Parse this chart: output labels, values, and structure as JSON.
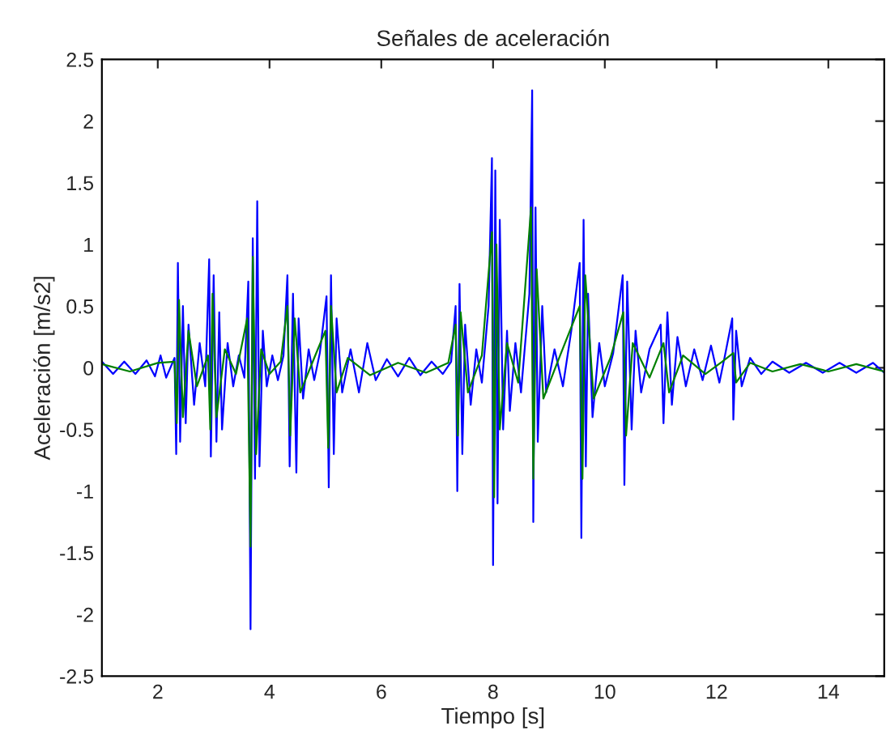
{
  "chart_data": {
    "type": "line",
    "title": "Señales de aceleración",
    "xlabel": "Tiempo [s]",
    "ylabel": "Aceleración [m/s2]",
    "xlim": [
      1,
      15
    ],
    "ylim": [
      -2.5,
      2.5
    ],
    "xticks": [
      2,
      4,
      6,
      8,
      10,
      12,
      14
    ],
    "yticks": [
      -2.5,
      -2,
      -1.5,
      -1,
      -0.5,
      0,
      0.5,
      1,
      1.5,
      2,
      2.5
    ],
    "grid": false,
    "line_style": "solid",
    "series": [
      {
        "color": "#0000ff",
        "x": [
          1.0,
          1.2,
          1.4,
          1.6,
          1.8,
          1.95,
          2.05,
          2.15,
          2.3,
          2.33,
          2.36,
          2.4,
          2.45,
          2.5,
          2.55,
          2.65,
          2.75,
          2.85,
          2.92,
          2.95,
          3.0,
          3.05,
          3.1,
          3.15,
          3.25,
          3.35,
          3.45,
          3.55,
          3.62,
          3.66,
          3.7,
          3.74,
          3.78,
          3.82,
          3.88,
          3.95,
          4.05,
          4.15,
          4.25,
          4.32,
          4.36,
          4.42,
          4.48,
          4.52,
          4.6,
          4.7,
          4.8,
          4.9,
          5.02,
          5.06,
          5.1,
          5.15,
          5.2,
          5.3,
          5.45,
          5.6,
          5.75,
          5.9,
          6.1,
          6.3,
          6.5,
          6.7,
          6.9,
          7.1,
          7.25,
          7.33,
          7.36,
          7.4,
          7.45,
          7.5,
          7.6,
          7.7,
          7.8,
          7.92,
          7.98,
          8.0,
          8.04,
          8.08,
          8.12,
          8.18,
          8.25,
          8.3,
          8.4,
          8.5,
          8.65,
          8.7,
          8.72,
          8.76,
          8.8,
          8.88,
          8.95,
          9.1,
          9.25,
          9.4,
          9.55,
          9.58,
          9.62,
          9.66,
          9.7,
          9.78,
          9.9,
          10.0,
          10.15,
          10.32,
          10.35,
          10.4,
          10.48,
          10.55,
          10.65,
          10.8,
          11.0,
          11.05,
          11.12,
          11.2,
          11.3,
          11.45,
          11.6,
          11.75,
          11.9,
          12.05,
          12.15,
          12.28,
          12.3,
          12.35,
          12.45,
          12.6,
          12.8,
          13.0,
          13.3,
          13.6,
          13.9,
          14.2,
          14.5,
          14.8,
          15.0
        ],
        "values": [
          0.05,
          -0.05,
          0.05,
          -0.05,
          0.06,
          -0.07,
          0.1,
          -0.08,
          0.08,
          -0.7,
          0.85,
          -0.6,
          0.5,
          -0.45,
          0.35,
          -0.3,
          0.2,
          -0.15,
          0.88,
          -0.72,
          0.75,
          -0.6,
          0.45,
          -0.5,
          0.2,
          -0.15,
          0.1,
          -0.08,
          0.7,
          -2.12,
          1.05,
          -0.9,
          1.35,
          -0.8,
          0.3,
          -0.15,
          0.1,
          -0.1,
          0.1,
          0.75,
          -0.8,
          0.6,
          -0.85,
          0.4,
          -0.25,
          0.15,
          -0.1,
          0.12,
          0.58,
          -0.97,
          0.75,
          -0.7,
          0.4,
          -0.2,
          0.15,
          -0.2,
          0.2,
          -0.1,
          0.07,
          -0.07,
          0.08,
          -0.06,
          0.05,
          -0.05,
          0.05,
          0.5,
          -1.0,
          0.68,
          -0.7,
          0.35,
          -0.3,
          0.15,
          -0.12,
          0.5,
          1.7,
          -1.6,
          1.6,
          -1.1,
          1.2,
          -0.5,
          0.3,
          -0.35,
          0.2,
          -0.2,
          0.6,
          2.25,
          -1.25,
          1.3,
          -0.6,
          0.5,
          -0.2,
          0.15,
          -0.15,
          0.3,
          0.85,
          -1.38,
          1.2,
          -0.8,
          0.6,
          -0.4,
          0.2,
          -0.15,
          0.12,
          0.75,
          -0.95,
          0.7,
          -0.5,
          0.3,
          -0.2,
          0.15,
          0.35,
          -0.45,
          0.45,
          -0.3,
          0.25,
          -0.15,
          0.15,
          -0.1,
          0.18,
          -0.12,
          0.1,
          0.4,
          -0.42,
          0.3,
          -0.15,
          0.08,
          -0.05,
          0.05,
          -0.04,
          0.04,
          -0.04,
          0.04,
          -0.04,
          0.04,
          -0.04
        ]
      },
      {
        "color": "#008000",
        "x": [
          1.0,
          1.5,
          2.0,
          2.3,
          2.34,
          2.38,
          2.45,
          2.55,
          2.7,
          2.9,
          2.94,
          2.98,
          3.05,
          3.2,
          3.4,
          3.6,
          3.66,
          3.7,
          3.76,
          3.85,
          4.0,
          4.2,
          4.32,
          4.37,
          4.45,
          4.55,
          4.8,
          5.0,
          5.05,
          5.1,
          5.2,
          5.4,
          5.8,
          6.3,
          6.8,
          7.2,
          7.33,
          7.37,
          7.42,
          7.55,
          7.8,
          7.98,
          8.02,
          8.06,
          8.12,
          8.25,
          8.45,
          8.68,
          8.72,
          8.78,
          8.9,
          9.2,
          9.55,
          9.6,
          9.65,
          9.8,
          10.1,
          10.33,
          10.38,
          10.5,
          10.8,
          11.05,
          11.15,
          11.4,
          11.8,
          12.1,
          12.3,
          12.35,
          12.6,
          13.0,
          13.5,
          14.0,
          14.5,
          15.0
        ],
        "values": [
          0.03,
          -0.03,
          0.04,
          0.05,
          -0.45,
          0.55,
          -0.4,
          0.3,
          -0.15,
          0.1,
          -0.5,
          0.6,
          -0.4,
          0.15,
          -0.05,
          0.4,
          -1.45,
          0.9,
          -0.7,
          0.15,
          -0.05,
          0.05,
          0.5,
          -0.55,
          0.4,
          -0.2,
          0.08,
          0.3,
          -0.65,
          0.5,
          -0.2,
          0.08,
          -0.06,
          0.04,
          -0.04,
          0.04,
          0.35,
          -0.55,
          0.45,
          -0.2,
          0.1,
          1.1,
          -1.05,
          1.0,
          -0.5,
          0.2,
          -0.12,
          1.3,
          -0.9,
          0.8,
          -0.25,
          0.1,
          0.5,
          -0.9,
          0.75,
          -0.25,
          0.08,
          0.45,
          -0.55,
          0.2,
          -0.08,
          0.2,
          -0.2,
          0.1,
          -0.05,
          0.05,
          0.12,
          -0.12,
          0.04,
          -0.03,
          0.03,
          -0.03,
          0.03,
          -0.03
        ]
      }
    ]
  }
}
